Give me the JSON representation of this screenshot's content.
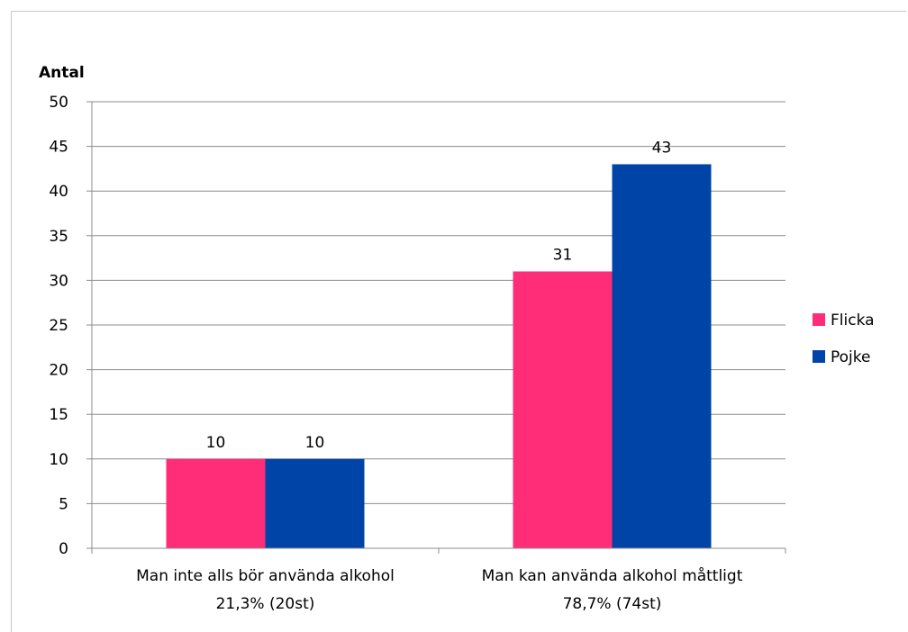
{
  "chart_data": {
    "type": "bar",
    "title": "",
    "ylabel": "Antal",
    "xlabel": "",
    "ylim": [
      0,
      50
    ],
    "yticks": [
      0,
      5,
      10,
      15,
      20,
      25,
      30,
      35,
      40,
      45,
      50
    ],
    "grid": true,
    "legend_position": "right",
    "categories": [
      [
        "Man inte alls bör använda alkohol",
        "21,3% (20st)"
      ],
      [
        "Man kan använda alkohol måttligt",
        "78,7% (74st)"
      ]
    ],
    "series": [
      {
        "name": "Flicka",
        "color": "#ff2d78",
        "values": [
          10,
          31
        ]
      },
      {
        "name": "Pojke",
        "color": "#0044a8",
        "values": [
          10,
          43
        ]
      }
    ]
  }
}
